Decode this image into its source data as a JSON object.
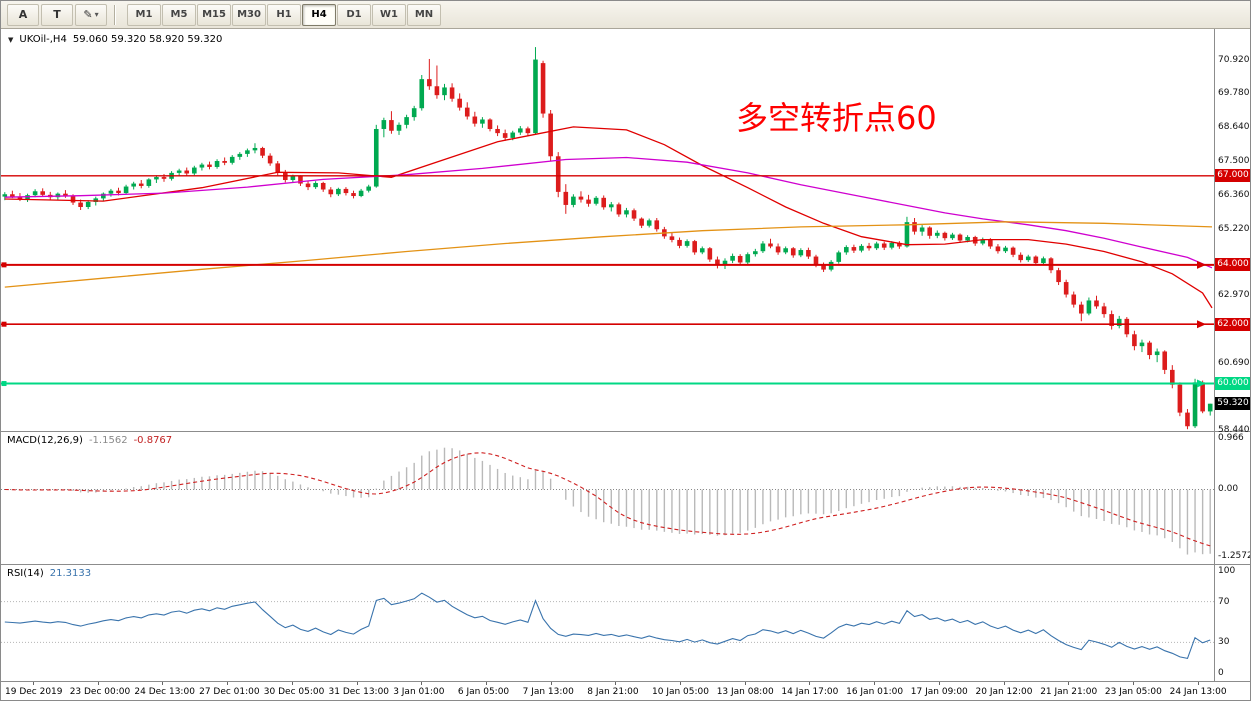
{
  "toolbar": {
    "left_buttons": [
      {
        "name": "arrow-tool-button",
        "label": "A"
      },
      {
        "name": "text-tool-button",
        "label": "T"
      },
      {
        "name": "drawing-tool-button",
        "label": "✎",
        "caret": "▾"
      }
    ],
    "timeframes": [
      {
        "label": "M1",
        "selected": false
      },
      {
        "label": "M5",
        "selected": false
      },
      {
        "label": "M15",
        "selected": false
      },
      {
        "label": "M30",
        "selected": false
      },
      {
        "label": "H1",
        "selected": false
      },
      {
        "label": "H4",
        "selected": true
      },
      {
        "label": "D1",
        "selected": false
      },
      {
        "label": "W1",
        "selected": false
      },
      {
        "label": "MN",
        "selected": false
      }
    ]
  },
  "chart": {
    "marker": "▼",
    "symbol": "UKOil-,H4",
    "ohlc": "59.060 59.320 58.920 59.320",
    "annotation": {
      "text": "多空转折点60",
      "color": "#ff0000"
    }
  },
  "chart_data": {
    "type": "candlestick",
    "symbol": "UKOil-",
    "timeframe": "H4",
    "up_color": "#00a950",
    "down_color": "#dc1c1c",
    "price_axis": {
      "min": 58.4,
      "max": 71.95,
      "labels": [
        "70.920",
        "69.780",
        "68.640",
        "67.500",
        "66.360",
        "65.220",
        "62.970",
        "60.690",
        "58.440"
      ]
    },
    "hlines": [
      {
        "price": 67.0,
        "label": "67.000",
        "color": "#d40000",
        "width": 1.4,
        "handles": false
      },
      {
        "price": 64.0,
        "label": "64.000",
        "color": "#d40000",
        "width": 2,
        "handles": true
      },
      {
        "price": 62.0,
        "label": "62.000",
        "color": "#d40000",
        "width": 1.6,
        "handles": true
      },
      {
        "price": 60.0,
        "label": "60.000",
        "color": "#00d884",
        "width": 2,
        "handles": true
      }
    ],
    "current_price": {
      "value": 59.32,
      "label": "59.320",
      "box_color": "#000000"
    },
    "moving_averages": [
      {
        "name": "ma-fast-red",
        "color": "#e00000",
        "points": [
          [
            0,
            66.22
          ],
          [
            13,
            66.15
          ],
          [
            26,
            66.6
          ],
          [
            36,
            67.12
          ],
          [
            44,
            67.1
          ],
          [
            51,
            66.95
          ],
          [
            58,
            67.55
          ],
          [
            65,
            68.15
          ],
          [
            70,
            68.4
          ],
          [
            75,
            68.65
          ],
          [
            82,
            68.55
          ],
          [
            87,
            68.05
          ],
          [
            92,
            67.35
          ],
          [
            98,
            66.6
          ],
          [
            103,
            65.95
          ],
          [
            108,
            65.4
          ],
          [
            113,
            64.95
          ],
          [
            119,
            64.68
          ],
          [
            124,
            64.7
          ],
          [
            129,
            64.85
          ],
          [
            135,
            64.85
          ],
          [
            140,
            64.7
          ],
          [
            145,
            64.45
          ],
          [
            150,
            64.1
          ],
          [
            154,
            63.7
          ],
          [
            158,
            63.05
          ],
          [
            160,
            62.55
          ]
        ]
      },
      {
        "name": "ma-mid-magenta",
        "color": "#cf00cf",
        "points": [
          [
            0,
            66.28
          ],
          [
            10,
            66.33
          ],
          [
            21,
            66.42
          ],
          [
            32,
            66.62
          ],
          [
            42,
            66.88
          ],
          [
            53,
            67.04
          ],
          [
            63,
            67.25
          ],
          [
            74,
            67.55
          ],
          [
            82,
            67.62
          ],
          [
            90,
            67.46
          ],
          [
            98,
            67.1
          ],
          [
            105,
            66.7
          ],
          [
            113,
            66.3
          ],
          [
            119,
            66.0
          ],
          [
            124,
            65.75
          ],
          [
            129,
            65.55
          ],
          [
            135,
            65.35
          ],
          [
            140,
            65.15
          ],
          [
            145,
            64.9
          ],
          [
            150,
            64.6
          ],
          [
            156,
            64.25
          ],
          [
            160,
            63.9
          ]
        ]
      },
      {
        "name": "ma-slow-orange",
        "color": "#e39215",
        "points": [
          [
            0,
            63.25
          ],
          [
            13,
            63.55
          ],
          [
            26,
            63.85
          ],
          [
            40,
            64.15
          ],
          [
            53,
            64.45
          ],
          [
            66,
            64.72
          ],
          [
            79,
            64.95
          ],
          [
            92,
            65.15
          ],
          [
            105,
            65.28
          ],
          [
            119,
            65.35
          ],
          [
            132,
            65.45
          ],
          [
            145,
            65.4
          ],
          [
            160,
            65.28
          ]
        ]
      }
    ],
    "candles": [
      [
        66.3,
        66.45,
        66.18,
        66.38
      ],
      [
        66.38,
        66.5,
        66.25,
        66.3
      ],
      [
        66.3,
        66.42,
        66.15,
        66.22
      ],
      [
        66.22,
        66.4,
        66.12,
        66.35
      ],
      [
        66.35,
        66.55,
        66.28,
        66.48
      ],
      [
        66.48,
        66.58,
        66.3,
        66.36
      ],
      [
        66.36,
        66.46,
        66.2,
        66.28
      ],
      [
        66.28,
        66.44,
        66.18,
        66.4
      ],
      [
        66.4,
        66.52,
        66.26,
        66.32
      ],
      [
        66.32,
        66.38,
        66.02,
        66.1
      ],
      [
        66.1,
        66.2,
        65.85,
        65.95
      ],
      [
        65.95,
        66.18,
        65.88,
        66.12
      ],
      [
        66.12,
        66.3,
        66.0,
        66.24
      ],
      [
        66.24,
        66.44,
        66.16,
        66.4
      ],
      [
        66.4,
        66.56,
        66.3,
        66.5
      ],
      [
        66.5,
        66.6,
        66.34,
        66.42
      ],
      [
        66.42,
        66.7,
        66.38,
        66.64
      ],
      [
        66.64,
        66.8,
        66.54,
        66.74
      ],
      [
        66.74,
        66.86,
        66.58,
        66.66
      ],
      [
        66.66,
        66.92,
        66.6,
        66.88
      ],
      [
        66.88,
        67.02,
        66.76,
        66.96
      ],
      [
        66.96,
        67.06,
        66.8,
        66.9
      ],
      [
        66.9,
        67.16,
        66.84,
        67.1
      ],
      [
        67.1,
        67.24,
        66.98,
        67.18
      ],
      [
        67.18,
        67.28,
        67.0,
        67.08
      ],
      [
        67.08,
        67.34,
        67.02,
        67.28
      ],
      [
        67.28,
        67.44,
        67.18,
        67.38
      ],
      [
        67.38,
        67.48,
        67.22,
        67.3
      ],
      [
        67.3,
        67.56,
        67.24,
        67.5
      ],
      [
        67.5,
        67.62,
        67.36,
        67.44
      ],
      [
        67.44,
        67.7,
        67.38,
        67.64
      ],
      [
        67.64,
        67.8,
        67.54,
        67.74
      ],
      [
        67.74,
        67.92,
        67.64,
        67.86
      ],
      [
        67.86,
        68.1,
        67.76,
        67.94
      ],
      [
        67.94,
        67.98,
        67.6,
        67.68
      ],
      [
        67.68,
        67.76,
        67.34,
        67.42
      ],
      [
        67.42,
        67.5,
        67.02,
        67.1
      ],
      [
        67.1,
        67.2,
        66.78,
        66.86
      ],
      [
        66.86,
        67.04,
        66.78,
        66.98
      ],
      [
        66.98,
        67.02,
        66.66,
        66.74
      ],
      [
        66.74,
        66.84,
        66.52,
        66.62
      ],
      [
        66.62,
        66.82,
        66.56,
        66.76
      ],
      [
        66.76,
        66.8,
        66.46,
        66.54
      ],
      [
        66.54,
        66.62,
        66.28,
        66.38
      ],
      [
        66.38,
        66.6,
        66.32,
        66.56
      ],
      [
        66.56,
        66.62,
        66.34,
        66.42
      ],
      [
        66.42,
        66.5,
        66.24,
        66.32
      ],
      [
        66.32,
        66.56,
        66.28,
        66.5
      ],
      [
        66.5,
        66.7,
        66.44,
        66.64
      ],
      [
        66.64,
        68.72,
        66.6,
        68.58
      ],
      [
        68.58,
        68.96,
        68.3,
        68.88
      ],
      [
        68.88,
        69.18,
        68.42,
        68.52
      ],
      [
        68.52,
        68.8,
        68.38,
        68.72
      ],
      [
        68.72,
        69.06,
        68.6,
        68.98
      ],
      [
        68.98,
        69.36,
        68.86,
        69.28
      ],
      [
        69.28,
        70.4,
        69.2,
        70.26
      ],
      [
        70.26,
        70.94,
        69.9,
        70.02
      ],
      [
        70.02,
        70.72,
        69.6,
        69.72
      ],
      [
        69.72,
        70.1,
        69.55,
        69.98
      ],
      [
        69.98,
        70.12,
        69.5,
        69.6
      ],
      [
        69.6,
        69.78,
        69.2,
        69.3
      ],
      [
        69.3,
        69.48,
        68.9,
        69.0
      ],
      [
        69.0,
        69.16,
        68.66,
        68.76
      ],
      [
        68.76,
        68.98,
        68.62,
        68.9
      ],
      [
        68.9,
        68.94,
        68.5,
        68.58
      ],
      [
        68.58,
        68.7,
        68.34,
        68.44
      ],
      [
        68.44,
        68.56,
        68.18,
        68.28
      ],
      [
        68.28,
        68.52,
        68.2,
        68.46
      ],
      [
        68.46,
        68.68,
        68.38,
        68.6
      ],
      [
        68.6,
        68.66,
        68.36,
        68.44
      ],
      [
        68.44,
        71.34,
        68.4,
        70.92
      ],
      [
        70.8,
        70.88,
        68.96,
        69.1
      ],
      [
        69.1,
        69.22,
        67.5,
        67.66
      ],
      [
        67.66,
        67.8,
        66.28,
        66.46
      ],
      [
        66.46,
        66.72,
        65.72,
        66.02
      ],
      [
        66.02,
        66.38,
        65.94,
        66.3
      ],
      [
        66.3,
        66.48,
        66.1,
        66.2
      ],
      [
        66.2,
        66.36,
        65.96,
        66.06
      ],
      [
        66.06,
        66.32,
        66.0,
        66.26
      ],
      [
        66.26,
        66.34,
        65.86,
        65.94
      ],
      [
        65.94,
        66.12,
        65.8,
        66.04
      ],
      [
        66.04,
        66.1,
        65.62,
        65.7
      ],
      [
        65.7,
        65.92,
        65.6,
        65.84
      ],
      [
        65.84,
        65.9,
        65.48,
        65.56
      ],
      [
        65.56,
        65.6,
        65.24,
        65.32
      ],
      [
        65.32,
        65.56,
        65.26,
        65.5
      ],
      [
        65.5,
        65.58,
        65.12,
        65.2
      ],
      [
        65.2,
        65.28,
        64.88,
        64.96
      ],
      [
        64.96,
        65.1,
        64.76,
        64.84
      ],
      [
        64.84,
        64.92,
        64.56,
        64.64
      ],
      [
        64.64,
        64.86,
        64.58,
        64.8
      ],
      [
        64.8,
        64.84,
        64.34,
        64.42
      ],
      [
        64.42,
        64.62,
        64.36,
        64.56
      ],
      [
        64.56,
        64.6,
        64.1,
        64.18
      ],
      [
        64.18,
        64.28,
        63.88,
        63.98
      ],
      [
        63.98,
        64.22,
        63.86,
        64.14
      ],
      [
        64.14,
        64.38,
        64.06,
        64.3
      ],
      [
        64.3,
        64.36,
        63.98,
        64.08
      ],
      [
        64.08,
        64.42,
        64.02,
        64.36
      ],
      [
        64.36,
        64.54,
        64.28,
        64.46
      ],
      [
        64.46,
        64.8,
        64.4,
        64.72
      ],
      [
        64.72,
        64.88,
        64.56,
        64.62
      ],
      [
        64.62,
        64.72,
        64.34,
        64.42
      ],
      [
        64.42,
        64.62,
        64.36,
        64.56
      ],
      [
        64.56,
        64.6,
        64.24,
        64.32
      ],
      [
        64.32,
        64.56,
        64.26,
        64.5
      ],
      [
        64.5,
        64.58,
        64.2,
        64.28
      ],
      [
        64.28,
        64.34,
        63.92,
        64.0
      ],
      [
        64.0,
        64.08,
        63.76,
        63.84
      ],
      [
        63.84,
        64.16,
        63.78,
        64.1
      ],
      [
        64.1,
        64.48,
        64.04,
        64.42
      ],
      [
        64.42,
        64.66,
        64.34,
        64.6
      ],
      [
        64.6,
        64.68,
        64.4,
        64.48
      ],
      [
        64.48,
        64.7,
        64.42,
        64.64
      ],
      [
        64.64,
        64.74,
        64.48,
        64.56
      ],
      [
        64.56,
        64.78,
        64.5,
        64.72
      ],
      [
        64.72,
        64.78,
        64.5,
        64.58
      ],
      [
        64.58,
        64.8,
        64.52,
        64.74
      ],
      [
        64.74,
        64.8,
        64.54,
        64.62
      ],
      [
        64.62,
        65.62,
        64.58,
        65.44
      ],
      [
        65.44,
        65.58,
        65.02,
        65.12
      ],
      [
        65.12,
        65.34,
        64.98,
        65.26
      ],
      [
        65.26,
        65.3,
        64.88,
        64.98
      ],
      [
        64.98,
        65.16,
        64.9,
        65.08
      ],
      [
        65.08,
        65.12,
        64.82,
        64.9
      ],
      [
        64.9,
        65.08,
        64.84,
        65.02
      ],
      [
        65.02,
        65.06,
        64.74,
        64.82
      ],
      [
        64.82,
        65.0,
        64.76,
        64.94
      ],
      [
        64.94,
        64.98,
        64.64,
        64.72
      ],
      [
        64.72,
        64.92,
        64.66,
        64.86
      ],
      [
        64.86,
        64.9,
        64.54,
        64.62
      ],
      [
        64.62,
        64.7,
        64.38,
        64.46
      ],
      [
        64.46,
        64.64,
        64.4,
        64.58
      ],
      [
        64.58,
        64.62,
        64.26,
        64.34
      ],
      [
        64.34,
        64.42,
        64.08,
        64.16
      ],
      [
        64.16,
        64.34,
        64.1,
        64.28
      ],
      [
        64.28,
        64.32,
        63.98,
        64.06
      ],
      [
        64.06,
        64.28,
        64.0,
        64.22
      ],
      [
        64.22,
        64.26,
        63.72,
        63.82
      ],
      [
        63.82,
        63.9,
        63.32,
        63.42
      ],
      [
        63.42,
        63.5,
        62.9,
        63.0
      ],
      [
        63.0,
        63.1,
        62.56,
        62.66
      ],
      [
        62.66,
        62.76,
        62.1,
        62.36
      ],
      [
        62.36,
        62.9,
        62.3,
        62.8
      ],
      [
        62.8,
        62.96,
        62.52,
        62.6
      ],
      [
        62.6,
        62.72,
        62.22,
        62.34
      ],
      [
        62.34,
        62.46,
        61.82,
        61.94
      ],
      [
        61.94,
        62.28,
        61.86,
        62.18
      ],
      [
        62.18,
        62.24,
        61.56,
        61.66
      ],
      [
        61.66,
        61.78,
        61.12,
        61.26
      ],
      [
        61.26,
        61.48,
        61.06,
        61.38
      ],
      [
        61.38,
        61.44,
        60.82,
        60.96
      ],
      [
        60.96,
        61.18,
        60.72,
        61.08
      ],
      [
        61.08,
        61.12,
        60.32,
        60.46
      ],
      [
        60.46,
        60.62,
        59.84,
        59.96
      ],
      [
        59.96,
        60.04,
        58.9,
        59.02
      ],
      [
        59.02,
        59.14,
        58.46,
        58.56
      ],
      [
        58.56,
        60.16,
        58.5,
        60.04
      ],
      [
        60.04,
        60.1,
        59.0,
        59.06
      ],
      [
        59.06,
        59.32,
        58.92,
        59.32
      ]
    ],
    "indicators": {
      "macd": {
        "title": "MACD(12,26,9)",
        "value_main": "-1.1562",
        "value_signal": "-0.8767",
        "params": [
          12,
          26,
          9
        ],
        "axis_labels": [
          "0.966",
          "0.00",
          "-1.2572"
        ],
        "hist_color": "#b9b9b9",
        "signal_color": "#cf2020"
      },
      "rsi": {
        "title": "RSI(14)",
        "value": "21.3133",
        "period": 14,
        "axis_labels": [
          "100",
          "70",
          "30",
          "0"
        ],
        "levels": [
          70,
          30
        ],
        "line_color": "#3973ac"
      }
    },
    "time_axis": [
      "19 Dec 2019",
      "23 Dec 00:00",
      "24 Dec 13:00",
      "27 Dec 01:00",
      "30 Dec 05:00",
      "31 Dec 13:00",
      "3 Jan 01:00",
      "6 Jan 05:00",
      "7 Jan 13:00",
      "8 Jan 21:00",
      "10 Jan 05:00",
      "13 Jan 08:00",
      "14 Jan 17:00",
      "16 Jan 01:00",
      "17 Jan 09:00",
      "20 Jan 12:00",
      "21 Jan 21:00",
      "23 Jan 05:00",
      "24 Jan 13:00"
    ]
  }
}
